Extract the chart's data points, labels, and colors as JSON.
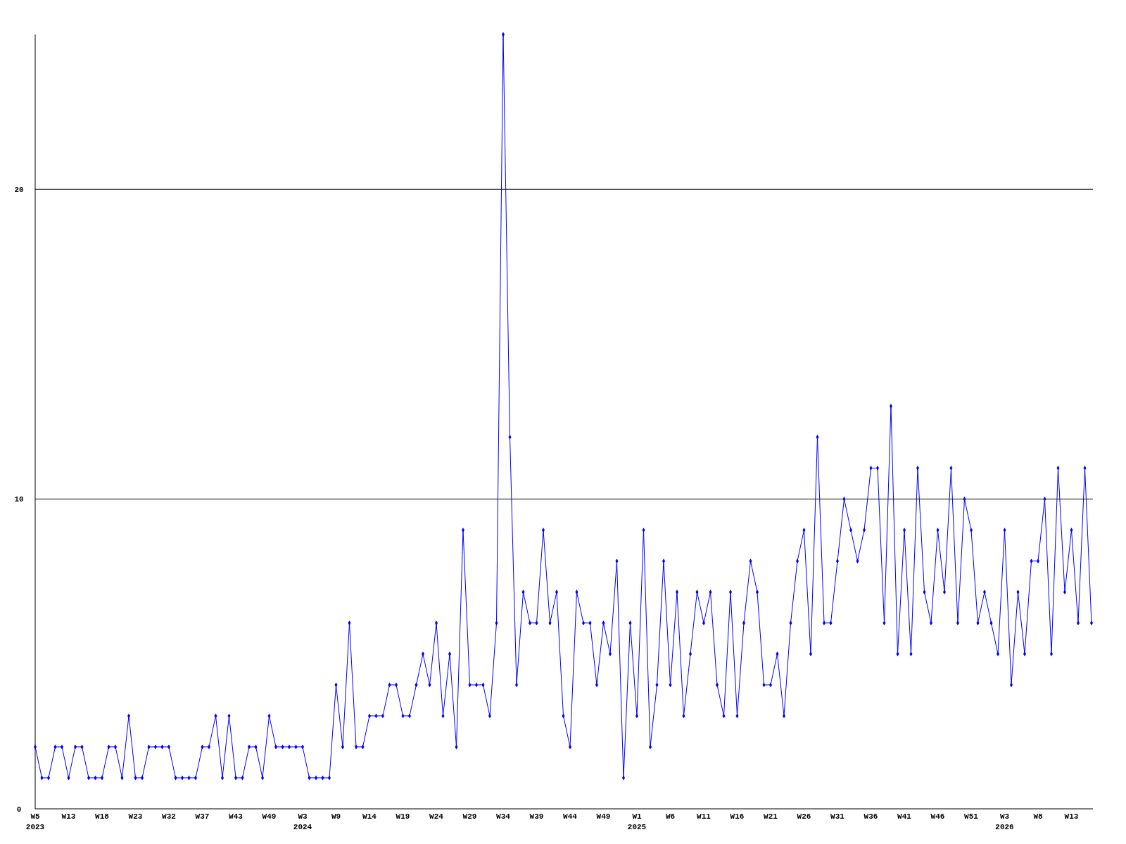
{
  "chart_data": {
    "type": "line",
    "categories": [
      "W5\n2023",
      null,
      null,
      null,
      null,
      "W13",
      null,
      null,
      null,
      null,
      "W18",
      null,
      null,
      null,
      null,
      "W23",
      null,
      null,
      null,
      null,
      "W32",
      null,
      null,
      null,
      null,
      "W37",
      null,
      null,
      null,
      null,
      "W43",
      null,
      null,
      null,
      null,
      "W49",
      null,
      null,
      null,
      null,
      "W3\n2024",
      null,
      null,
      null,
      null,
      "W9",
      null,
      null,
      null,
      null,
      "W14",
      null,
      null,
      null,
      null,
      "W19",
      null,
      null,
      null,
      null,
      "W24",
      null,
      null,
      null,
      null,
      "W29",
      null,
      null,
      null,
      null,
      "W34",
      null,
      null,
      null,
      null,
      "W39",
      null,
      null,
      null,
      null,
      "W44",
      null,
      null,
      null,
      null,
      "W49",
      null,
      null,
      null,
      null,
      "W1\n2025",
      null,
      null,
      null,
      null,
      "W6",
      null,
      null,
      null,
      null,
      "W11",
      null,
      null,
      null,
      null,
      "W16",
      null,
      null,
      null,
      null,
      "W21",
      null,
      null,
      null,
      null,
      "W26",
      null,
      null,
      null,
      null,
      "W31",
      null,
      null,
      null,
      null,
      "W36",
      null,
      null,
      null,
      null,
      "W41",
      null,
      null,
      null,
      null,
      "W46",
      null,
      null,
      null,
      null,
      "W51",
      null,
      null,
      null,
      null,
      "W3\n2026",
      null,
      null,
      null,
      null,
      "W8",
      null,
      null,
      null,
      null,
      "W13",
      null,
      null,
      null
    ],
    "series": [
      {
        "color": "#0000ff",
        "values": [
          2,
          1,
          1,
          2,
          2,
          1,
          2,
          2,
          1,
          1,
          1,
          2,
          2,
          1,
          3,
          1,
          1,
          2,
          2,
          2,
          2,
          1,
          1,
          1,
          1,
          2,
          2,
          3,
          1,
          3,
          1,
          1,
          2,
          2,
          1,
          3,
          2,
          2,
          2,
          2,
          2,
          1,
          1,
          1,
          1,
          4,
          2,
          6,
          2,
          2,
          3,
          3,
          3,
          4,
          4,
          3,
          3,
          4,
          5,
          4,
          6,
          3,
          5,
          2,
          9,
          4,
          4,
          4,
          3,
          6,
          25,
          12,
          4,
          7,
          6,
          6,
          9,
          6,
          7,
          3,
          2,
          7,
          6,
          6,
          4,
          6,
          5,
          8,
          1,
          6,
          3,
          9,
          2,
          4,
          8,
          4,
          7,
          3,
          5,
          7,
          6,
          7,
          4,
          3,
          7,
          3,
          6,
          8,
          7,
          4,
          4,
          5,
          3,
          6,
          8,
          9,
          5,
          12,
          6,
          6,
          8,
          10,
          9,
          8,
          9,
          11,
          11,
          6,
          13,
          5,
          9,
          5,
          11,
          7,
          6,
          9,
          7,
          11,
          6,
          10,
          9,
          6,
          7,
          6,
          5,
          9,
          4,
          7,
          5,
          8,
          8,
          10,
          5,
          11,
          7,
          9,
          6,
          11,
          6
        ]
      }
    ],
    "ylim": [
      0,
      25
    ],
    "yticks": [
      0,
      10,
      20
    ],
    "grid": "y",
    "marker": "diamond",
    "line_style": "solid"
  }
}
